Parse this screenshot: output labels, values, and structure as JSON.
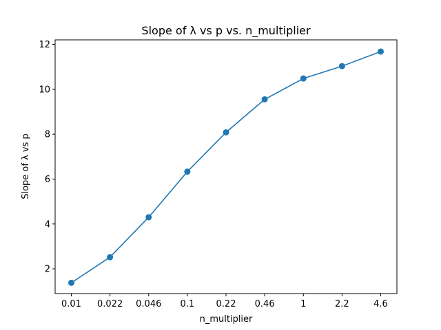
{
  "chart_data": {
    "type": "line",
    "title": "Slope of λ vs p vs. n_multiplier",
    "xlabel": "n_multiplier",
    "ylabel": "Slope of λ vs p",
    "categories": [
      "0.01",
      "0.022",
      "0.046",
      "0.1",
      "0.22",
      "0.46",
      "1",
      "2.2",
      "4.6"
    ],
    "series": [
      {
        "values": [
          1.38,
          2.52,
          4.3,
          6.33,
          8.08,
          9.55,
          10.48,
          11.03,
          11.68
        ]
      }
    ],
    "ylim": [
      0.9,
      12.2
    ],
    "yticks": [
      "2",
      "4",
      "6",
      "8",
      "10",
      "12"
    ],
    "grid": false,
    "colors": {
      "series": "#1f77b4"
    }
  }
}
